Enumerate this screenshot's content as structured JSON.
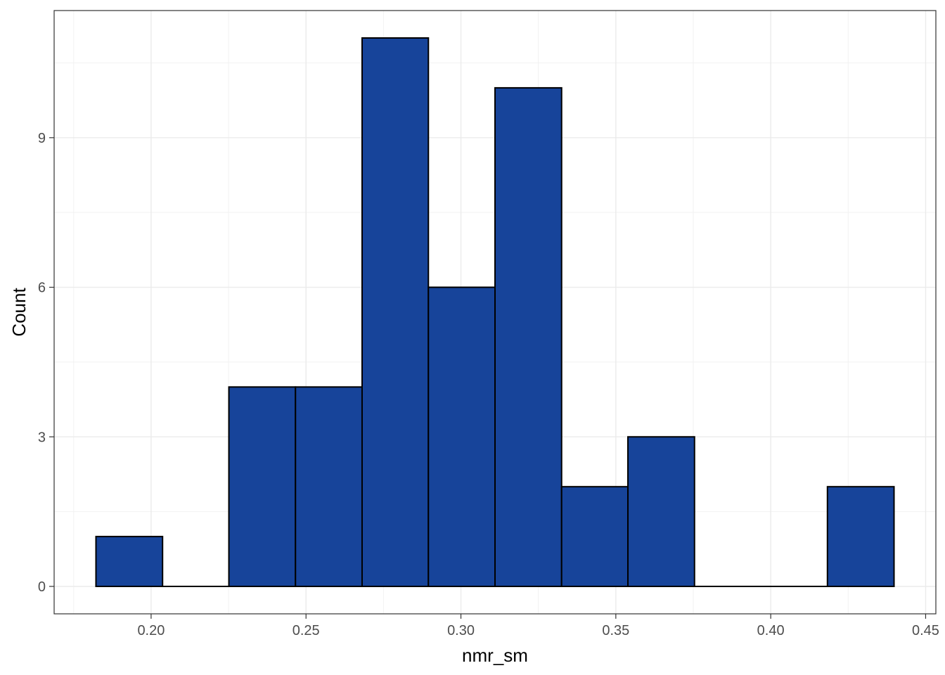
{
  "chart_data": {
    "type": "bar",
    "xlabel": "nmr_sm",
    "ylabel": "Count",
    "bin_edges": [
      0.1822,
      0.2037,
      0.2251,
      0.2466,
      0.2681,
      0.2895,
      0.311,
      0.3325,
      0.3539,
      0.3754,
      0.3969,
      0.4183,
      0.4398
    ],
    "values": [
      1,
      0,
      4,
      4,
      11,
      6,
      10,
      2,
      3,
      0,
      0,
      2
    ],
    "xlim": [
      0.1687,
      0.4533
    ],
    "ylim": [
      -0.55,
      11.55
    ],
    "x_ticks": [
      0.2,
      0.25,
      0.3,
      0.35,
      0.4,
      0.45
    ],
    "x_tick_labels": [
      "0.20",
      "0.25",
      "0.30",
      "0.35",
      "0.40",
      "0.45"
    ],
    "y_ticks": [
      0,
      3,
      6,
      9
    ],
    "y_tick_labels": [
      "0",
      "3",
      "6",
      "9"
    ],
    "grid": true,
    "legend": "none",
    "colors": {
      "bar_fill": "#17449a",
      "bar_stroke": "#000000",
      "grid_major": "#ebebeb",
      "grid_minor": "#f2f2f2",
      "panel_border": "#333333"
    }
  }
}
